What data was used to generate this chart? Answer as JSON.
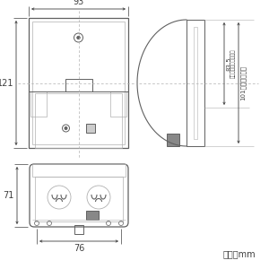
{
  "bg_color": "#ffffff",
  "lc": "#606060",
  "llc": "#b0b0b0",
  "dc": "#404040",
  "dim_93": "93",
  "dim_121": "121",
  "dim_83_5": "83.5",
  "dim_83_5_sub": "（ボックス取付寸法）",
  "dim_101": "101（取付寸法）",
  "dim_76": "76",
  "dim_71": "71",
  "unit": "単位：mm"
}
